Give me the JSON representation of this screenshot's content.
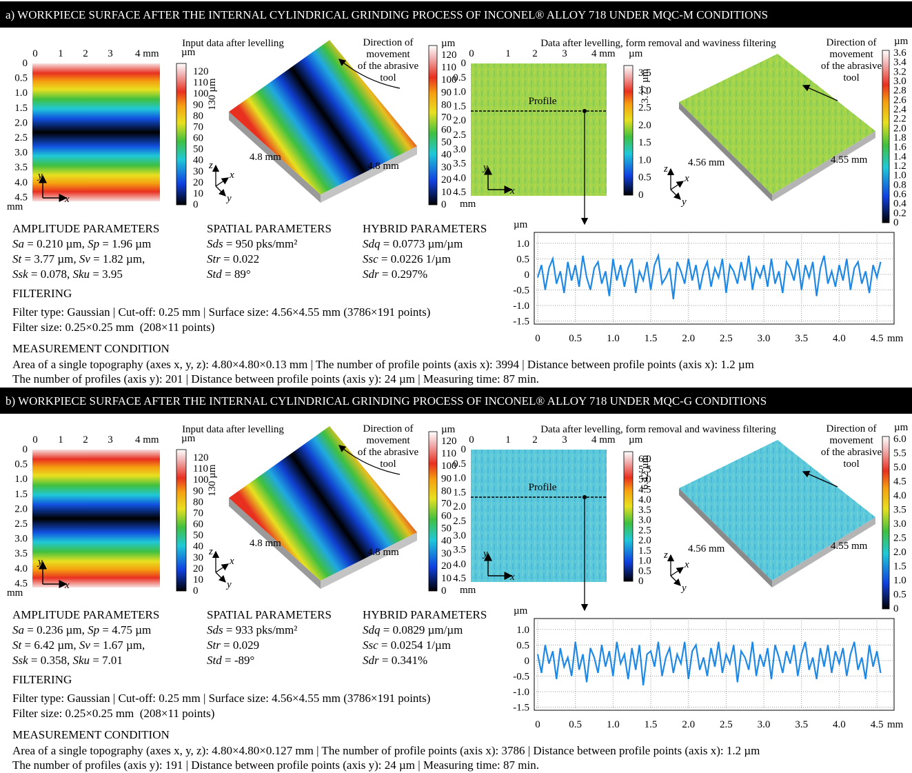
{
  "panels": [
    {
      "heading": "a) WORKPIECE SURFACE AFTER THE INTERNAL CYLINDRICAL GRINDING PROCESS OF INCONEL® ALLOY 718 UNDER MQC-M CONDITIONS",
      "map": {
        "xticks": [
          "0",
          "1",
          "2",
          "3",
          "4 mm"
        ],
        "yticks": [
          "0",
          "0.5",
          "1.0",
          "1.5",
          "2.0",
          "2.5",
          "3.0",
          "3.5",
          "4.0",
          "4.5"
        ],
        "unit": "mm",
        "axes": [
          "y",
          "x"
        ]
      },
      "input_title": "Input data after levelling",
      "scale1": {
        "unit": "µm",
        "ticks": [
          "120",
          "110",
          "100",
          "90",
          "80",
          "70",
          "60",
          "50",
          "40",
          "30",
          "20",
          "10",
          "0"
        ]
      },
      "surface1": {
        "height": "130 µm",
        "dims": [
          "4.8 mm",
          "4.8 mm"
        ],
        "axes": [
          "z",
          "x",
          "y"
        ]
      },
      "direction1": [
        "Direction of",
        "movement",
        "of the abrasive",
        "tool"
      ],
      "scale2": {
        "unit": "µm",
        "ticks": [
          "120",
          "110",
          "100",
          "90",
          "80",
          "70",
          "60",
          "50",
          "40",
          "30",
          "20",
          "10",
          "0"
        ]
      },
      "filtered_title": "Data after levelling, form removal and waviness filtering",
      "map2": {
        "xticks": [
          "0",
          "1",
          "2",
          "3",
          "4 mm"
        ],
        "yticks": [
          "0",
          "0.5",
          "1.0",
          "1.5",
          "2.0",
          "2.5",
          "3.0",
          "3.5",
          "4.0",
          "4.5"
        ],
        "unit": "mm",
        "axes": [
          "y",
          "x"
        ],
        "profile": "Profile"
      },
      "scale3": {
        "unit": "µm",
        "ticks": [
          "3.5",
          "3.0",
          "2.5",
          "2.0",
          "1.5",
          "1.0",
          "0.5",
          "0"
        ]
      },
      "surface2": {
        "height": "3.77 µm",
        "dims": [
          "4.56 mm",
          "4.55 mm"
        ],
        "axes": [
          "z",
          "x",
          "y"
        ]
      },
      "direction2": [
        "Direction of",
        "movement",
        "of the abrasive",
        "tool"
      ],
      "scale4": {
        "unit": "µm",
        "ticks": [
          "3.6",
          "3.4",
          "3.2",
          "3.0",
          "2.8",
          "2.6",
          "2.4",
          "2.2",
          "2.0",
          "1.8",
          "1.6",
          "1.4",
          "1.2",
          "1.0",
          "0.8",
          "0.6",
          "0.4",
          "0.2",
          "0"
        ]
      },
      "parameters": [
        {
          "title": "AMPLITUDE PARAMETERS",
          "lines": [
            [
              {
                "name": "Sa",
                "text": " = 0.210 µm, "
              },
              {
                "name": "Sp",
                "text": " = 1.96 µm"
              }
            ],
            [
              {
                "name": "St",
                "text": " = 3.77 µm, "
              },
              {
                "name": "Sv",
                "text": " = 1.82 µm,"
              }
            ],
            [
              {
                "name": "Ssk",
                "text": " = 0.078, "
              },
              {
                "name": "Sku",
                "text": " = 3.95"
              }
            ]
          ]
        },
        {
          "title": "SPATIAL PARAMETERS",
          "lines": [
            [
              {
                "name": "Sds",
                "text": " = 950 pks/mm²"
              }
            ],
            [
              {
                "name": "Str",
                "text": " = 0.022"
              }
            ],
            [
              {
                "name": "Std",
                "text": " = 89°"
              }
            ]
          ]
        },
        {
          "title": "HYBRID PARAMETERS",
          "lines": [
            [
              {
                "name": "Sdq",
                "text": " = 0.0773 µm/µm"
              }
            ],
            [
              {
                "name": "Ssc",
                "text": " = 0.0226 1/µm"
              }
            ],
            [
              {
                "name": "Sdr",
                "text": " = 0.297%"
              }
            ]
          ]
        }
      ],
      "filtering": {
        "title": "FILTERING",
        "lines": [
          "Filter type: Gaussian | Cut-off: 0.25 mm | Surface size: 4.56×4.55 mm (3786×191 points)",
          "Filter size: 0.25×0.25 mm  (208×11 points)"
        ]
      },
      "measurement": {
        "title": "MEASUREMENT CONDITION",
        "lines": [
          "Area of a single topography (axes x, y, z): 4.80×4.80×0.13 mm | The number of profile points (axis x): 3994 | Distance between profile points (axis x): 1.2 µm",
          "The number of profiles (axis y): 201 | Distance between profile points (axis y): 24 µm | Measuring time: 87 min."
        ]
      },
      "profile": {
        "xunit": "mm",
        "yunit": "µm",
        "color": "#1e88e5",
        "xlim": [
          0,
          4.6
        ],
        "ylim": [
          -1.6,
          1.35
        ],
        "xticks": [
          0,
          0.5,
          {
            "value": 1,
            "label": "1.0"
          },
          1.5,
          {
            "value": 2,
            "label": "2.0"
          },
          2.5,
          {
            "value": 3,
            "label": "3.0"
          },
          3.5,
          {
            "value": 4,
            "label": "4.0"
          },
          4.5
        ],
        "yticks": [
          {
            "value": 1,
            "label": "1.0"
          },
          0.5,
          0,
          -0.5,
          {
            "value": -1,
            "label": "-1.0"
          },
          -1.5
        ],
        "x": [
          0,
          0.05,
          0.1,
          0.15,
          0.2,
          0.25,
          0.3,
          0.35,
          0.4,
          0.45,
          0.5,
          0.55,
          0.6,
          0.65,
          0.7,
          0.75,
          0.8,
          0.85,
          0.9,
          0.95,
          1,
          1.05,
          1.1,
          1.15,
          1.2,
          1.25,
          1.3,
          1.35,
          1.4,
          1.45,
          1.5,
          1.55,
          1.6,
          1.65,
          1.7,
          1.75,
          1.8,
          1.85,
          1.9,
          1.95,
          2,
          2.05,
          2.1,
          2.15,
          2.2,
          2.25,
          2.3,
          2.35,
          2.4,
          2.45,
          2.5,
          2.55,
          2.6,
          2.65,
          2.7,
          2.75,
          2.8,
          2.85,
          2.9,
          2.95,
          3,
          3.05,
          3.1,
          3.15,
          3.2,
          3.25,
          3.3,
          3.35,
          3.4,
          3.45,
          3.5,
          3.55,
          3.6,
          3.65,
          3.7,
          3.75,
          3.8,
          3.85,
          3.9,
          3.95,
          4,
          4.05,
          4.1,
          4.15,
          4.2,
          4.25,
          4.3,
          4.35,
          4.4,
          4.45,
          4.5,
          4.55
        ],
        "values": [
          -0.1,
          0.3,
          -0.5,
          0.2,
          0.5,
          -0.3,
          0.1,
          -0.6,
          0.4,
          -0.2,
          0.3,
          -0.4,
          0.6,
          -0.1,
          -0.5,
          0.2,
          0.4,
          -0.3,
          0.1,
          -0.7,
          0.5,
          -0.2,
          0.3,
          -0.4,
          0.2,
          0.5,
          -0.6,
          0.1,
          -0.2,
          0.4,
          -0.5,
          0.3,
          0.6,
          -0.3,
          -0.1,
          0.2,
          -0.8,
          0.4,
          0.1,
          -0.3,
          0.5,
          -0.2,
          0.3,
          -0.5,
          0.1,
          0.4,
          -0.4,
          0.2,
          -0.1,
          0.5,
          -0.6,
          0.3,
          0.1,
          -0.3,
          0.4,
          -0.2,
          0.6,
          -0.5,
          0.2,
          -0.1,
          0.3,
          -0.4,
          0.5,
          -0.3,
          0.1,
          -0.6,
          0.4,
          0.2,
          -0.2,
          0.5,
          -0.5,
          0.3,
          -0.1,
          0.4,
          -0.7,
          0.2,
          0.6,
          -0.3,
          0.1,
          -0.4,
          0.3,
          -0.2,
          0.5,
          -0.5,
          0.2,
          0.4,
          -0.3,
          0.1,
          -0.6,
          0.3,
          -0.1,
          0.4
        ]
      }
    },
    {
      "heading": "b) WORKPIECE SURFACE AFTER THE INTERNAL CYLINDRICAL GRINDING PROCESS OF INCONEL® ALLOY 718 UNDER MQC-G CONDITIONS",
      "map": {
        "xticks": [
          "0",
          "1",
          "2",
          "3",
          "4 mm"
        ],
        "yticks": [
          "0",
          "0.5",
          "1.0",
          "1.5",
          "2.0",
          "2.5",
          "3.0",
          "3.5",
          "4.0",
          "4.5"
        ],
        "unit": "mm",
        "axes": [
          "y",
          "x"
        ]
      },
      "input_title": "Input data after levelling",
      "scale1": {
        "unit": "µm",
        "ticks": [
          "120",
          "110",
          "100",
          "90",
          "80",
          "70",
          "60",
          "50",
          "40",
          "30",
          "20",
          "10",
          "0"
        ]
      },
      "surface1": {
        "height": "130 µm",
        "dims": [
          "4.8 mm",
          "4.8 mm"
        ],
        "axes": [
          "z",
          "x",
          "y"
        ]
      },
      "direction1": [
        "Direction of",
        "movement",
        "of the abrasive",
        "tool"
      ],
      "scale2": {
        "unit": "µm",
        "ticks": [
          "120",
          "110",
          "100",
          "90",
          "80",
          "70",
          "60",
          "50",
          "40",
          "30",
          "20",
          "10",
          "0"
        ]
      },
      "filtered_title": "Data after levelling, form removal and waviness filtering",
      "map2": {
        "xticks": [
          "0",
          "1",
          "2",
          "3",
          "4 mm"
        ],
        "yticks": [
          "0",
          "0.5",
          "1.0",
          "1.5",
          "2.0",
          "2.5",
          "3.0",
          "3.5",
          "4.0",
          "4.5"
        ],
        "unit": "mm",
        "axes": [
          "y",
          "x"
        ],
        "profile": "Profile"
      },
      "scale3": {
        "unit": "µm",
        "ticks": [
          "6.0",
          "5.5",
          "5.0",
          "4.5",
          "4.0",
          "3.5",
          "3.0",
          "2.5",
          "2.0",
          "1.5",
          "1.0",
          "0.5",
          "0"
        ]
      },
      "surface2": {
        "height": "6.42 µm",
        "dims": [
          "4.56 mm",
          "4.55 mm"
        ],
        "axes": [
          "z",
          "x",
          "y"
        ]
      },
      "direction2": [
        "Direction of",
        "movement",
        "of the abrasive",
        "tool"
      ],
      "scale4": {
        "unit": "µm",
        "ticks": [
          "6.0",
          "5.5",
          "5.0",
          "4.5",
          "4.0",
          "3.5",
          "3.0",
          "2.5",
          "2.0",
          "1.5",
          "1.0",
          "0.5",
          "0"
        ]
      },
      "parameters": [
        {
          "title": "AMPLITUDE PARAMETERS",
          "lines": [
            [
              {
                "name": "Sa",
                "text": " = 0.236 µm, "
              },
              {
                "name": "Sp",
                "text": " = 4.75 µm"
              }
            ],
            [
              {
                "name": "St",
                "text": " = 6.42 µm, "
              },
              {
                "name": "Sv",
                "text": " = 1.67 µm,"
              }
            ],
            [
              {
                "name": "Ssk",
                "text": " = 0.358, "
              },
              {
                "name": "Sku",
                "text": " = 7.01"
              }
            ]
          ]
        },
        {
          "title": "SPATIAL PARAMETERS",
          "lines": [
            [
              {
                "name": "Sds",
                "text": " = 933 pks/mm²"
              }
            ],
            [
              {
                "name": "Str",
                "text": " = 0.029"
              }
            ],
            [
              {
                "name": "Std",
                "text": " = -89°"
              }
            ]
          ]
        },
        {
          "title": "HYBRID PARAMETERS",
          "lines": [
            [
              {
                "name": "Sdq",
                "text": " = 0.0829 µm/µm"
              }
            ],
            [
              {
                "name": "Ssc",
                "text": " = 0.0254 1/µm"
              }
            ],
            [
              {
                "name": "Sdr",
                "text": " = 0.341%"
              }
            ]
          ]
        }
      ],
      "filtering": {
        "title": "FILTERING",
        "lines": [
          "Filter type: Gaussian | Cut-off: 0.25 mm | Surface size: 4.56×4.55 mm (3786×191 points)",
          "Filter size: 0.25×0.25 mm  (208×11 points)"
        ]
      },
      "measurement": {
        "title": "MEASUREMENT CONDITION",
        "lines": [
          "Area of a single topography (axes x, y, z): 4.80×4.80×0.127 mm | The number of profile points (axis x): 3786 | Distance between profile points (axis x): 1.2 µm",
          "The number of profiles (axis y): 191 | Distance between profile points (axis y): 24 µm | Measuring time: 87 min."
        ]
      },
      "profile": {
        "xunit": "mm",
        "yunit": "µm",
        "color": "#1e88e5",
        "xlim": [
          0,
          4.6
        ],
        "ylim": [
          -1.6,
          1.35
        ],
        "xticks": [
          0,
          0.5,
          {
            "value": 1,
            "label": "1.0"
          },
          1.5,
          {
            "value": 2,
            "label": "2.0"
          },
          2.5,
          {
            "value": 3,
            "label": "3.0"
          },
          3.5,
          {
            "value": 4,
            "label": "4.0"
          },
          4.5
        ],
        "yticks": [
          {
            "value": 1,
            "label": "1.0"
          },
          0.5,
          0,
          -0.5,
          {
            "value": -1,
            "label": "-1.0"
          },
          -1.5
        ],
        "x": [
          0,
          0.05,
          0.1,
          0.15,
          0.2,
          0.25,
          0.3,
          0.35,
          0.4,
          0.45,
          0.5,
          0.55,
          0.6,
          0.65,
          0.7,
          0.75,
          0.8,
          0.85,
          0.9,
          0.95,
          1,
          1.05,
          1.1,
          1.15,
          1.2,
          1.25,
          1.3,
          1.35,
          1.4,
          1.45,
          1.5,
          1.55,
          1.6,
          1.65,
          1.7,
          1.75,
          1.8,
          1.85,
          1.9,
          1.95,
          2,
          2.05,
          2.1,
          2.15,
          2.2,
          2.25,
          2.3,
          2.35,
          2.4,
          2.45,
          2.5,
          2.55,
          2.6,
          2.65,
          2.7,
          2.75,
          2.8,
          2.85,
          2.9,
          2.95,
          3,
          3.05,
          3.1,
          3.15,
          3.2,
          3.25,
          3.3,
          3.35,
          3.4,
          3.45,
          3.5,
          3.55,
          3.6,
          3.65,
          3.7,
          3.75,
          3.8,
          3.85,
          3.9,
          3.95,
          4,
          4.05,
          4.1,
          4.15,
          4.2,
          4.25,
          4.3,
          4.35,
          4.4,
          4.45,
          4.5,
          4.55
        ],
        "values": [
          0.2,
          -0.4,
          0.5,
          -0.1,
          0.3,
          -0.6,
          0.4,
          -0.2,
          0.1,
          -0.5,
          0.6,
          -0.3,
          0.2,
          -0.7,
          0.4,
          0.1,
          -0.4,
          0.5,
          -0.2,
          0.3,
          -0.5,
          0.6,
          -0.1,
          0.2,
          -0.6,
          0.4,
          -0.3,
          0.5,
          -0.8,
          0.2,
          0.3,
          -0.2,
          0.6,
          -0.5,
          0.1,
          0.4,
          -0.4,
          0.2,
          -0.1,
          0.6,
          -0.6,
          0.3,
          0.5,
          -0.3,
          0.1,
          -0.5,
          0.4,
          -0.2,
          0.6,
          -0.4,
          0.2,
          -0.1,
          0.5,
          -0.7,
          0.3,
          0.1,
          -0.3,
          0.6,
          -0.5,
          0.2,
          -0.2,
          0.4,
          -0.6,
          0.5,
          0.1,
          -0.4,
          0.3,
          -0.1,
          0.5,
          -0.5,
          0.2,
          0.6,
          -0.3,
          0.1,
          -0.6,
          0.4,
          -0.2,
          0.5,
          -0.4,
          0.3,
          -0.1,
          0.4,
          -0.5,
          0.2,
          0.6,
          -0.3,
          0.1,
          -0.6,
          0.5,
          -0.2,
          0.3,
          -0.4
        ]
      }
    }
  ]
}
